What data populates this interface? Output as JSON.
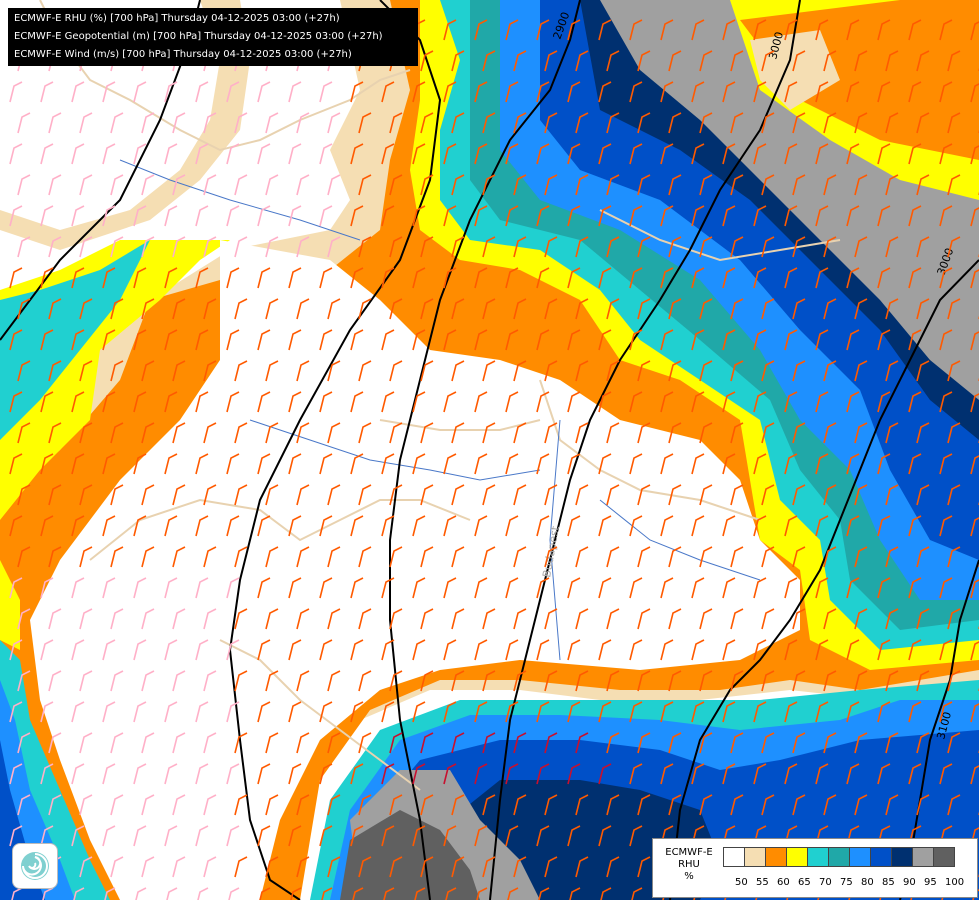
{
  "header": {
    "line1": "ECMWF-E RHU (%) [700 hPa] Thursday 04-12-2025 03:00 (+27h)",
    "line2": "ECMWF-E Geopotential (m) [700 hPa] Thursday 04-12-2025 03:00 (+27h)",
    "line3": "ECMWF-E Wind (m/s) [700 hPa] Thursday 04-12-2025 03:00 (+27h)"
  },
  "legend": {
    "title_lines": [
      "ECMWF-E",
      "RHU",
      "%"
    ],
    "ticks": [
      "50",
      "55",
      "60",
      "65",
      "70",
      "75",
      "80",
      "85",
      "90",
      "95",
      "100"
    ],
    "colors": [
      "#ffffff",
      "#f5deb3",
      "#ff8c00",
      "#ffff00",
      "#20d0d0",
      "#20a8a8",
      "#1e90ff",
      "#0050c8",
      "#003070",
      "#a0a0a0",
      "#606060"
    ]
  },
  "map": {
    "contour_labels": [
      "2900",
      "3000",
      "3000",
      "3100"
    ],
    "city_label": "Budapest",
    "colors": {
      "moisture_light": "#f5deb3",
      "moisture_orange": "#ff8c00",
      "moisture_yellow": "#ffff00",
      "moisture_cyan": "#20d0d0",
      "moisture_teal": "#20a8a8",
      "moisture_blue": "#1e90ff",
      "moisture_darkblue": "#0050c8",
      "moisture_navy": "#003070",
      "moisture_grey": "#a0a0a0",
      "moisture_darkgrey": "#606060",
      "wind_orange": "#ff5a00",
      "wind_pink": "#ffb0c8",
      "wind_red": "#c8102e",
      "border": "#e8d2b0",
      "river": "#4a78c8",
      "contour": "#000000"
    }
  },
  "logo": {
    "icon": "ecmwf-swirl-icon"
  }
}
